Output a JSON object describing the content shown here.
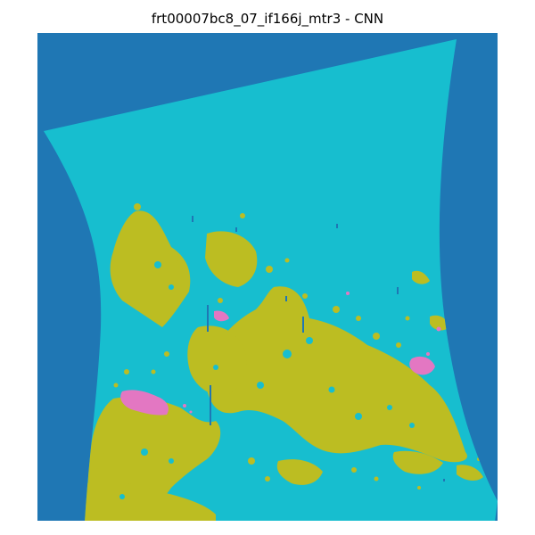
{
  "title": "frt00007bc8_07_if166j_mtr3 - CNN",
  "colors": {
    "background": "#1f77b4",
    "class_cyan": "#17becf",
    "class_olive": "#bcbd22",
    "class_pink": "#e377c2",
    "class_blue": "#1f77b4"
  }
}
